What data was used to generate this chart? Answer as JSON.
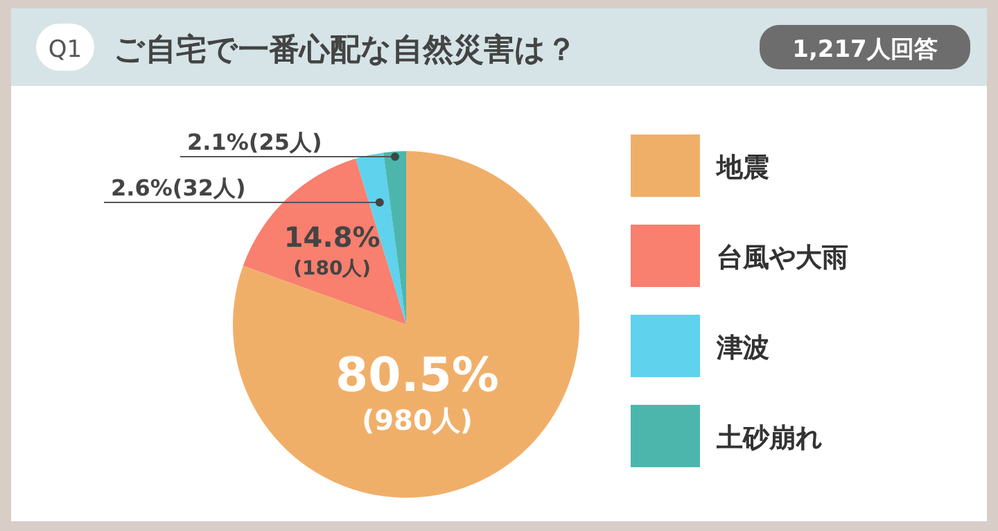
{
  "chart_data": {
    "type": "pie",
    "title": "ご自宅で一番心配な自然災害は？",
    "annotations": [
      "Q1",
      "1,217人回答"
    ],
    "categories": [
      "地震",
      "台風や大雨",
      "津波",
      "土砂崩れ"
    ],
    "values": [
      80.5,
      14.8,
      2.6,
      2.1
    ],
    "value_labels": [
      "80.5%(980人)",
      "14.8%(180人)",
      "2.6%(32人)",
      "2.1%(25人)"
    ],
    "colors": [
      "#f0af69",
      "#f97f6f",
      "#5fd2ee",
      "#4db6ac"
    ],
    "legend": "right"
  }
}
